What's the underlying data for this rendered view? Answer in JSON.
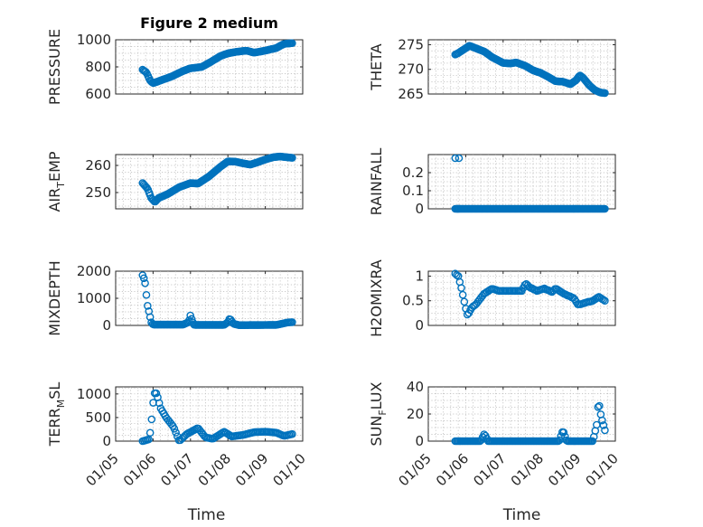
{
  "chart_data": [
    {
      "id": "pressure",
      "type": "scatter",
      "title": "Figure 2 medium",
      "ylabel": "PRESSURE",
      "ylim": [
        600,
        1000
      ],
      "yticks": [
        600,
        800,
        1000
      ],
      "xlabel": "",
      "x": [],
      "values": []
    },
    {
      "id": "theta",
      "type": "scatter",
      "title": "",
      "ylabel": "THETA",
      "ylim": [
        265,
        276
      ],
      "yticks": [
        265,
        270,
        275
      ],
      "xlabel": "",
      "x": [],
      "values": []
    },
    {
      "id": "air_temp",
      "type": "scatter",
      "title": "",
      "ylabel": "AIR",
      "ylabel_sub": "T",
      "ylabel_rest": "EMP",
      "ylim": [
        244,
        264
      ],
      "yticks": [
        250,
        260
      ],
      "xlabel": "",
      "x": [],
      "values": []
    },
    {
      "id": "rainfall",
      "type": "scatter",
      "title": "",
      "ylabel": "RAINFALL",
      "ylim": [
        0,
        0.3
      ],
      "yticks": [
        0,
        0.1,
        0.2
      ],
      "ytick_labels": [
        "0",
        "0.1",
        "0.2"
      ],
      "xlabel": "",
      "x": [],
      "values": []
    },
    {
      "id": "mixdepth",
      "type": "scatter",
      "title": "",
      "ylabel": "MIXDEPTH",
      "ylim": [
        0,
        2000
      ],
      "yticks": [
        0,
        1000,
        2000
      ],
      "xlabel": "",
      "x": [],
      "values": []
    },
    {
      "id": "h2omixra",
      "type": "scatter",
      "title": "",
      "ylabel": "H2OMIXRA",
      "ylim": [
        0,
        1.1
      ],
      "yticks": [
        0,
        0.5,
        1
      ],
      "ytick_labels": [
        "0",
        "0.5",
        "1"
      ],
      "xlabel": "",
      "x": [],
      "values": []
    },
    {
      "id": "terr_msl",
      "type": "scatter",
      "title": "",
      "ylabel": "TERR",
      "ylabel_sub": "M",
      "ylabel_rest": "SL",
      "ylim": [
        0,
        1150
      ],
      "yticks": [
        0,
        500,
        1000
      ],
      "xlabel": "Time",
      "x": [],
      "values": []
    },
    {
      "id": "sun_flux",
      "type": "scatter",
      "title": "",
      "ylabel": "SUN",
      "ylabel_sub": "F",
      "ylabel_rest": "LUX",
      "ylim": [
        0,
        40
      ],
      "yticks": [
        0,
        20,
        40
      ],
      "xlabel": "Time",
      "x": [],
      "values": []
    }
  ],
  "x_axis": {
    "xlim": [
      0,
      5
    ],
    "ticks": [
      0,
      1,
      2,
      3,
      4,
      5
    ],
    "tick_labels": [
      "01/05",
      "01/06",
      "01/07",
      "01/08",
      "01/09",
      "01/10"
    ]
  },
  "colors": {
    "marker": "#0072BD",
    "axes": "#262626",
    "grid": "#b8b8b8"
  }
}
